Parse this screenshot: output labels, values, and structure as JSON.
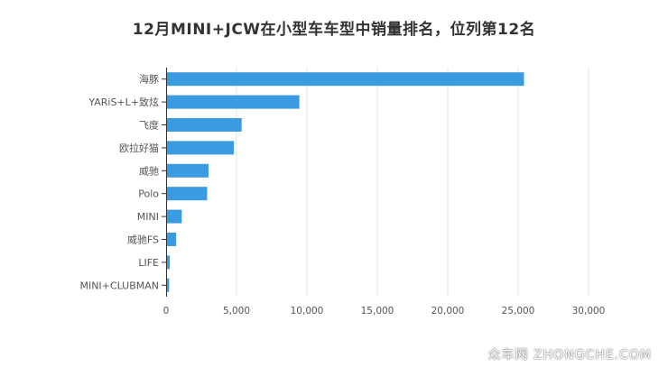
{
  "title": "12月MINI+JCW在小型车车型中销量排名，位列第12名",
  "watermark": "众车网 ZHONGCHE.COM",
  "colors": {
    "bar": "#3a9be0",
    "grid": "#e3e3e3",
    "axis": "#333333",
    "text": "#555555"
  },
  "chart_data": {
    "type": "bar",
    "orientation": "horizontal",
    "title": "12月MINI+JCW在小型车车型中销量排名，位列第12名",
    "categories": [
      "海豚",
      "YARiS+L+致炫",
      "飞度",
      "欧拉好猫",
      "威驰",
      "Polo",
      "MINI",
      "威驰FS",
      "LIFE",
      "MINI+CLUBMAN"
    ],
    "values": [
      25350,
      9400,
      5300,
      4750,
      2950,
      2850,
      1050,
      650,
      200,
      150
    ],
    "xlim": [
      0,
      30000
    ],
    "xticks": [
      0,
      5000,
      10000,
      15000,
      20000,
      25000,
      30000
    ],
    "xtick_labels": [
      "0",
      "5,000",
      "10,000",
      "15,000",
      "20,000",
      "25,000",
      "30,000"
    ],
    "grid": true,
    "xlabel": "",
    "ylabel": ""
  }
}
